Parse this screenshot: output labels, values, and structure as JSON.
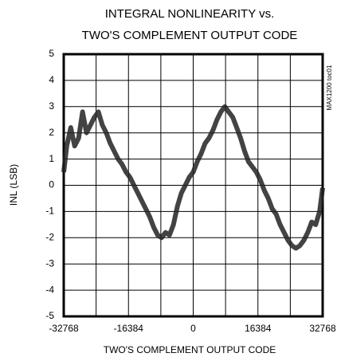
{
  "chart_data": {
    "type": "line",
    "title": [
      "INTEGRAL NONLINEARITY vs.",
      "TWO'S COMPLEMENT OUTPUT CODE"
    ],
    "x_label": "TWO'S COMPLEMENT OUTPUT CODE",
    "y_label": "INL (LSB)",
    "annotation": "MAX1200 toc01",
    "x": [
      -32768,
      -32000,
      -31000,
      -30000,
      -29000,
      -28000,
      -27000,
      -26000,
      -25000,
      -24000,
      -23000,
      -22000,
      -21000,
      -20000,
      -19000,
      -18000,
      -17000,
      -16000,
      -15000,
      -14000,
      -13000,
      -12000,
      -11000,
      -10000,
      -9000,
      -8000,
      -7000,
      -6000,
      -5000,
      -4000,
      -3000,
      -2000,
      -1000,
      0,
      1000,
      2000,
      3000,
      4000,
      5000,
      6000,
      7000,
      8000,
      9000,
      10000,
      11000,
      12000,
      13000,
      14000,
      15000,
      16000,
      17000,
      18000,
      19000,
      20000,
      21000,
      22000,
      23000,
      24000,
      25000,
      26000,
      27000,
      28000,
      29000,
      30000,
      31000,
      32000,
      32767
    ],
    "series": [
      {
        "name": "INL",
        "color": "#222222",
        "values": [
          0.5,
          1.5,
          2.2,
          1.5,
          1.8,
          2.8,
          2.0,
          2.3,
          2.6,
          2.8,
          2.3,
          2.0,
          1.6,
          1.3,
          1.0,
          0.8,
          0.5,
          0.3,
          0.0,
          -0.3,
          -0.6,
          -0.9,
          -1.2,
          -1.6,
          -1.9,
          -2.0,
          -1.8,
          -1.9,
          -1.5,
          -0.8,
          -0.3,
          0.0,
          0.3,
          0.5,
          0.9,
          1.2,
          1.6,
          1.8,
          2.1,
          2.5,
          2.8,
          3.0,
          2.8,
          2.6,
          2.2,
          1.8,
          1.3,
          0.9,
          0.7,
          0.5,
          0.2,
          -0.2,
          -0.5,
          -0.9,
          -1.1,
          -1.5,
          -1.8,
          -2.1,
          -2.3,
          -2.4,
          -2.3,
          -2.1,
          -1.8,
          -1.4,
          -1.5,
          -1.0,
          -0.1
        ]
      }
    ],
    "xlim": [
      -32768,
      32768
    ],
    "xticks": [
      -32768,
      -16384,
      0,
      16384,
      32768
    ],
    "xminorticks": [
      -24576,
      -8192,
      8192,
      24576
    ],
    "ylim": [
      -5,
      5
    ],
    "yticks": [
      -5,
      -4,
      -3,
      -2,
      -1,
      0,
      1,
      2,
      3,
      4,
      5
    ],
    "grid": true
  }
}
